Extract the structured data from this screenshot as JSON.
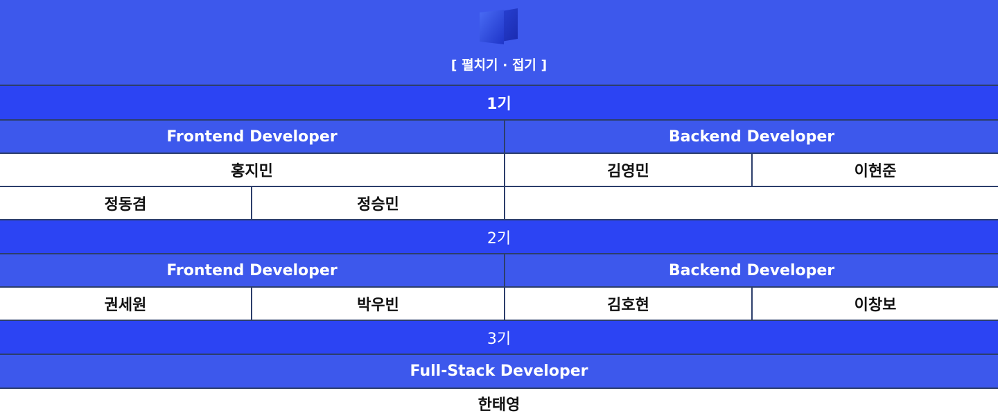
{
  "header": {
    "logo_icon": "cube-logo-icon",
    "toggle_label": "[ 펼치기 · 접기 ]"
  },
  "colors": {
    "header_bg": "#3d58ec",
    "generation_bg": "#2c44f3",
    "border": "#2c3e6b"
  },
  "generations": [
    {
      "label": "1기",
      "roles": [
        "Frontend Developer",
        "Backend Developer"
      ],
      "frontend_lead": "홍지민",
      "backend_members": [
        "김영민",
        "이현준"
      ],
      "frontend_members": [
        "정동겸",
        "정승민"
      ]
    },
    {
      "label": "2기",
      "roles": [
        "Frontend Developer",
        "Backend Developer"
      ],
      "members": [
        "권세원",
        "박우빈",
        "김호현",
        "이창보"
      ]
    },
    {
      "label": "3기",
      "roles": [
        "Full-Stack Developer"
      ],
      "members": [
        "한태영"
      ]
    }
  ]
}
